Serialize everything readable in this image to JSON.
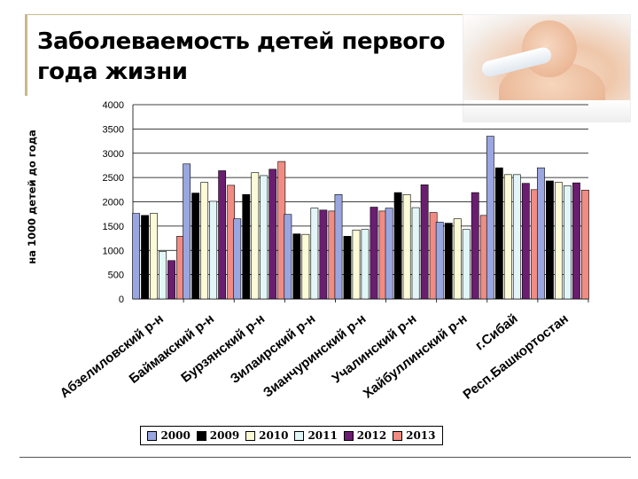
{
  "slide": {
    "title": "Заболеваемость детей первого года жизни",
    "photo_icon": "baby-drinking-photo"
  },
  "chart_data": {
    "type": "bar",
    "title": "",
    "xlabel": "",
    "ylabel": "на 1000 детей до года",
    "ylim": [
      0,
      4000
    ],
    "yticks": [
      0,
      500,
      1000,
      1500,
      2000,
      2500,
      3000,
      3500,
      4000
    ],
    "grid": true,
    "legend_position": "bottom",
    "categories": [
      "Абзелиловский р-н",
      "Баймакский р-н",
      "Бурзянский р-н",
      "Зилаирский р-н",
      "Зианчуринский р-н",
      "Учалинский  р-н",
      "Хайбуллинский р-н",
      "г.Сибай",
      "Респ.Башкортостан"
    ],
    "series": [
      {
        "name": "2000",
        "color": "#9aa6e0",
        "values": [
          1760,
          2780,
          1650,
          1740,
          2150,
          1870,
          1580,
          3350,
          2700
        ]
      },
      {
        "name": "2009",
        "color": "#000000",
        "values": [
          1720,
          2180,
          2150,
          1340,
          1290,
          2190,
          1560,
          2700,
          2430
        ]
      },
      {
        "name": "2010",
        "color": "#fbfbd8",
        "values": [
          1760,
          2400,
          2600,
          1330,
          1420,
          2150,
          1650,
          2560,
          2400
        ]
      },
      {
        "name": "2011",
        "color": "#e2f6f8",
        "values": [
          980,
          2010,
          2540,
          1870,
          1430,
          1880,
          1430,
          2560,
          2330
        ]
      },
      {
        "name": "2012",
        "color": "#6a1e70",
        "values": [
          790,
          2640,
          2670,
          1830,
          1890,
          2350,
          2190,
          2380,
          2390
        ]
      },
      {
        "name": "2013",
        "color": "#f08c84",
        "values": [
          1290,
          2340,
          2830,
          1810,
          1810,
          1780,
          1720,
          2250,
          2240
        ]
      }
    ]
  }
}
